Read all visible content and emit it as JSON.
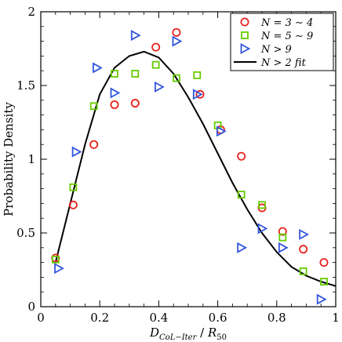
{
  "chart_data": {
    "type": "scatter",
    "xlabel": "D_{CoL-Iter} / R_{50}",
    "ylabel": "Probability Density",
    "xlim": [
      0,
      1
    ],
    "ylim": [
      0,
      2
    ],
    "x_ticks": [
      "0",
      "0.2",
      "0.4",
      "0.6",
      "0.8",
      "1"
    ],
    "y_ticks": [
      "0",
      "0.5",
      "1",
      "1.5",
      "2"
    ],
    "legend_position": "top-right",
    "series": [
      {
        "name": "N = 3 ∼ 4",
        "marker": "circle",
        "color": "#e8231f",
        "points": [
          [
            0.05,
            0.33
          ],
          [
            0.11,
            0.69
          ],
          [
            0.18,
            1.1
          ],
          [
            0.25,
            1.37
          ],
          [
            0.32,
            1.38
          ],
          [
            0.39,
            1.76
          ],
          [
            0.46,
            1.86
          ],
          [
            0.54,
            1.44
          ],
          [
            0.61,
            1.2
          ],
          [
            0.68,
            1.02
          ],
          [
            0.75,
            0.67
          ],
          [
            0.82,
            0.51
          ],
          [
            0.89,
            0.39
          ],
          [
            0.96,
            0.3
          ]
        ]
      },
      {
        "name": "N = 5 ∼ 9",
        "marker": "square",
        "color": "#66cc00",
        "points": [
          [
            0.05,
            0.32
          ],
          [
            0.11,
            0.81
          ],
          [
            0.18,
            1.36
          ],
          [
            0.25,
            1.58
          ],
          [
            0.32,
            1.58
          ],
          [
            0.39,
            1.64
          ],
          [
            0.46,
            1.55
          ],
          [
            0.53,
            1.57
          ],
          [
            0.6,
            1.23
          ],
          [
            0.68,
            0.76
          ],
          [
            0.75,
            0.69
          ],
          [
            0.82,
            0.47
          ],
          [
            0.89,
            0.24
          ],
          [
            0.96,
            0.17
          ]
        ]
      },
      {
        "name": "N > 9",
        "marker": "triangle-right",
        "color": "#3355dd",
        "points": [
          [
            0.06,
            0.26
          ],
          [
            0.12,
            1.05
          ],
          [
            0.19,
            1.62
          ],
          [
            0.25,
            1.45
          ],
          [
            0.32,
            1.84
          ],
          [
            0.4,
            1.49
          ],
          [
            0.46,
            1.8
          ],
          [
            0.53,
            1.44
          ],
          [
            0.61,
            1.19
          ],
          [
            0.68,
            0.4
          ],
          [
            0.75,
            0.53
          ],
          [
            0.82,
            0.4
          ],
          [
            0.89,
            0.49
          ],
          [
            0.95,
            0.05
          ]
        ]
      },
      {
        "name": "N > 2 fit",
        "marker": "line",
        "color": "#000000",
        "points": [
          [
            0.05,
            0.3
          ],
          [
            0.1,
            0.7
          ],
          [
            0.15,
            1.1
          ],
          [
            0.2,
            1.44
          ],
          [
            0.25,
            1.62
          ],
          [
            0.3,
            1.7
          ],
          [
            0.35,
            1.73
          ],
          [
            0.4,
            1.69
          ],
          [
            0.45,
            1.58
          ],
          [
            0.5,
            1.42
          ],
          [
            0.55,
            1.24
          ],
          [
            0.6,
            1.04
          ],
          [
            0.65,
            0.84
          ],
          [
            0.7,
            0.66
          ],
          [
            0.75,
            0.5
          ],
          [
            0.8,
            0.37
          ],
          [
            0.85,
            0.27
          ],
          [
            0.9,
            0.21
          ],
          [
            0.95,
            0.17
          ],
          [
            1.0,
            0.14
          ]
        ]
      }
    ]
  }
}
